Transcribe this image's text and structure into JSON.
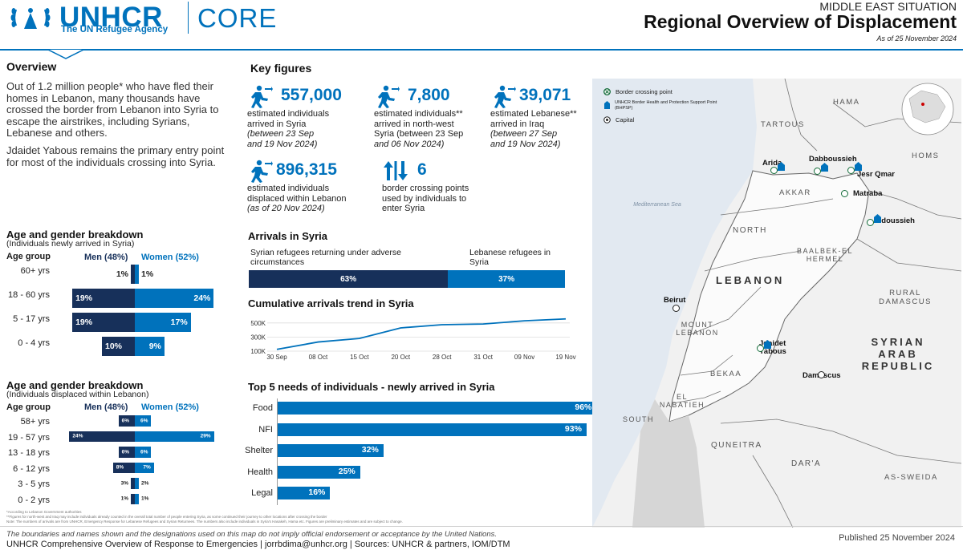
{
  "header": {
    "org_name": "UNHCR",
    "org_sub": "The UN Refugee Agency",
    "product": "CORE",
    "region": "MIDDLE EAST SITUATION",
    "title": "Regional Overview of Displacement",
    "as_of": "As of 25 November 2024"
  },
  "overview": {
    "heading": "Overview",
    "p1": "Out of 1.2 million people* who have fled their homes in Lebanon, many thousands have crossed the border from Lebanon into Syria to escape the airstrikes, including Syrians, Lebanese and others.",
    "p2": "Jdaidet Yabous remains the primary entry point for most of the individuals crossing into Syria."
  },
  "key_figures": {
    "heading": "Key figures",
    "items": [
      {
        "value": "557,000",
        "line1": "estimated individuals",
        "line2": "arrived in Syria",
        "line3": "(between 23 Sep",
        "line4": "and 19 Nov 2024)"
      },
      {
        "value": "7,800",
        "line1": "estimated individuals**",
        "line2": "arrived in north-west",
        "line3": "Syria (between 23 Sep",
        "line4": "and 06 Nov 2024)"
      },
      {
        "value": "39,071",
        "line1": "estimated Lebanese**",
        "line2": "arrived in Iraq",
        "line3": "(between 27 Sep",
        "line4": "and 19 Nov 2024)"
      },
      {
        "value": "896,315",
        "line1": "estimated individuals",
        "line2": "displaced within Lebanon",
        "line3": "(as of 20 Nov 2024)",
        "line4": ""
      },
      {
        "value": "6",
        "line1": "border crossing points",
        "line2": "used by individuals to",
        "line3": "enter Syria",
        "line4": ""
      }
    ]
  },
  "age_syria": {
    "heading": "Age and gender breakdown",
    "sub": "(Individuals newly arrived in Syria)",
    "col_age": "Age group",
    "col_men": "Men (48%)",
    "col_women": "Women (52%)",
    "rows": [
      {
        "age": "60+ yrs",
        "men": 1,
        "women": 1,
        "men_label": "1%",
        "women_label": "1%"
      },
      {
        "age": "18 - 60 yrs",
        "men": 19,
        "women": 24,
        "men_label": "19%",
        "women_label": "24%"
      },
      {
        "age": "5 - 17 yrs",
        "men": 19,
        "women": 17,
        "men_label": "19%",
        "women_label": "17%"
      },
      {
        "age": "0 - 4 yrs",
        "men": 10,
        "women": 9,
        "men_label": "10%",
        "women_label": "9%"
      }
    ]
  },
  "age_lebanon": {
    "heading": "Age and gender breakdown",
    "sub": "(Individuals displaced within Lebanon)",
    "col_age": "Age group",
    "col_men": "Men (48%)",
    "col_women": "Women (52%)",
    "rows": [
      {
        "age": "58+ yrs",
        "men": 6,
        "women": 6,
        "men_label": "6%",
        "women_label": "6%"
      },
      {
        "age": "19 - 57 yrs",
        "men": 24,
        "women": 29,
        "men_label": "24%",
        "women_label": "29%"
      },
      {
        "age": "13 - 18 yrs",
        "men": 6,
        "women": 6,
        "men_label": "6%",
        "women_label": "6%"
      },
      {
        "age": "6 - 12 yrs",
        "men": 8,
        "women": 7,
        "men_label": "8%",
        "women_label": "7%"
      },
      {
        "age": "3 - 5 yrs",
        "men": 3,
        "women": 2,
        "men_label": "3%",
        "women_label": "2%"
      },
      {
        "age": "0 - 2 yrs",
        "men": 1,
        "women": 1,
        "men_label": "1%",
        "women_label": "1%"
      }
    ]
  },
  "arrivals": {
    "heading": "Arrivals in Syria",
    "label_syrian": "Syrian refugees returning under adverse circumstances",
    "label_lebanese": "Lebanese refugees in Syria",
    "syrian_pct": 63,
    "lebanese_pct": 37,
    "syrian_label": "63%",
    "lebanese_label": "37%"
  },
  "trend": {
    "heading": "Cumulative arrivals trend in Syria"
  },
  "needs": {
    "heading": "Top 5 needs of individuals - newly arrived in Syria"
  },
  "chart_data": [
    {
      "type": "line",
      "title": "Cumulative arrivals trend in Syria",
      "x": [
        "30 Sep",
        "08 Oct",
        "15 Oct",
        "20 Oct",
        "28 Oct",
        "31 Oct",
        "09 Nov",
        "19 Nov"
      ],
      "y_ticks": [
        "500K",
        "300K",
        "100K"
      ],
      "ylim": [
        100000,
        600000
      ],
      "series": [
        {
          "values": [
            125000,
            230000,
            280000,
            430000,
            475000,
            485000,
            530000,
            557000
          ]
        }
      ]
    },
    {
      "type": "bar",
      "title": "Top 5 needs of individuals - newly arrived in Syria",
      "categories": [
        "Food",
        "NFI",
        "Shelter",
        "Health",
        "Legal"
      ],
      "values": [
        96,
        93,
        32,
        25,
        16
      ],
      "value_labels": [
        "96%",
        "93%",
        "32%",
        "25%",
        "16%"
      ],
      "ylim": [
        0,
        100
      ]
    }
  ],
  "map": {
    "legend": [
      "Border crossing point",
      "UNHCR Border Health and Protection Support Point (BHPSP)",
      "Capital"
    ],
    "sea_label": "Mediterranean Sea",
    "regions": [
      "HAMA",
      "TARTOUS",
      "HOMS",
      "AKKAR",
      "NORTH",
      "BAALBEK-EL HERMEL",
      "LEBANON",
      "RURAL DAMASCUS",
      "MOUNT LEBANON",
      "SYRIAN ARAB REPUBLIC",
      "BEKAA",
      "EL NABATIEH",
      "SOUTH",
      "QUNEITRA",
      "DAR'A",
      "AS-SWEIDA"
    ],
    "places": [
      "Arida",
      "Dabboussieh",
      "Jesr Qmar",
      "Matraba",
      "Jdoussieh",
      "Beirut",
      "Jdaidet Yabous",
      "Damascus"
    ]
  },
  "footer": {
    "note1": "*According to Lebanon Government authorities",
    "note2": "**Figures for north-west and Iraq may include individuals already counted in the overall total number of people entering Syria, as some continued their journey to other locations after crossing the border",
    "note3": "Note: The numbers of arrivals are from UNHCR, Emergency Response for Lebanese Refugees and Syrian Returnees. The numbers also include individuals in Syria's Hasakeh, Hama etc. Figures are preliminary estimates and are subject to change.",
    "disclaimer": "The boundaries and names shown and the designations used on this map do not imply official endorsement or acceptance by the United Nations.",
    "credit": "UNHCR Comprehensive Overview of Response to Emergencies | jorrbdima@unhcr.org | Sources: UNHCR & partners, IOM/DTM",
    "published": "Published 25 November 2024"
  }
}
